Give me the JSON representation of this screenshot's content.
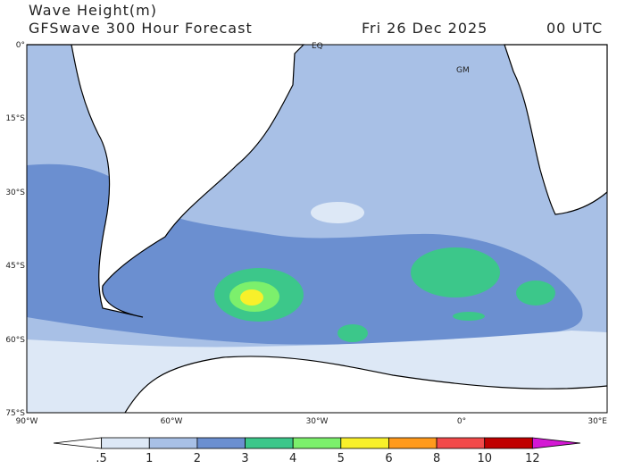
{
  "header": {
    "title": "Wave Height(m)",
    "subtitle": "GFSwave 300 Hour Forecast",
    "date": "Fri 26 Dec 2025",
    "time": "00 UTC"
  },
  "map": {
    "lat_labels": [
      "0°",
      "15°S",
      "30°S",
      "45°S",
      "60°S",
      "75°S"
    ],
    "lon_labels": [
      "90°W",
      "60°W",
      "30°W",
      "0°",
      "30°E"
    ],
    "annotations": [
      "EQ",
      "GM"
    ]
  },
  "colorbar": {
    "labels": [
      ".5",
      "1",
      "2",
      "3",
      "4",
      "5",
      "6",
      "8",
      "10",
      "12"
    ],
    "colors": [
      "#ffffff",
      "#dde8f6",
      "#a8c0e6",
      "#6b8fd0",
      "#3cc78a",
      "#7cf06c",
      "#f8f02a",
      "#ff9a1c",
      "#f24a4a",
      "#c00000",
      "#d418d4"
    ]
  }
}
